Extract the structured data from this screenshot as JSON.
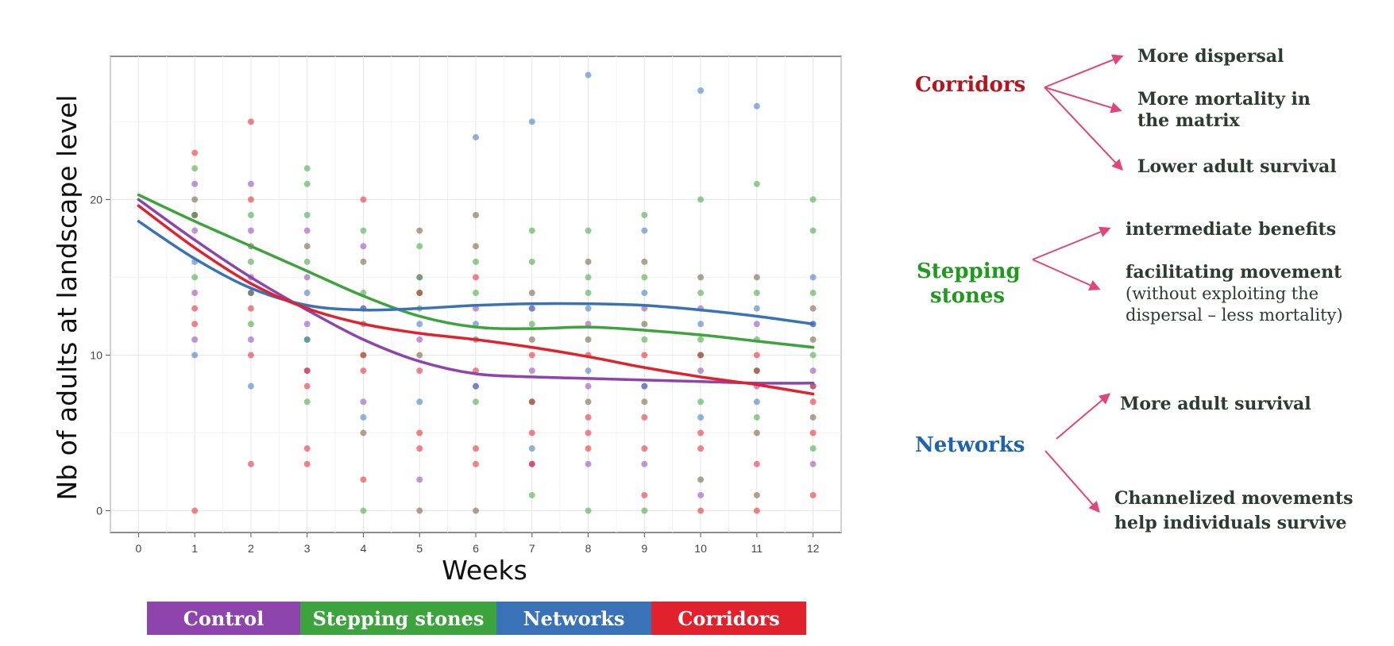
{
  "colors": {
    "control": "#8e44ad",
    "stepping": "#3da33d",
    "networks": "#3a72b8",
    "corridors": "#e1212b",
    "arrow": "#e0457b"
  },
  "chart_data": {
    "type": "scatter",
    "xlabel": "Weeks",
    "ylabel": "Nb of adults at landscape level",
    "xlim": [
      -0.5,
      12.5
    ],
    "ylim": [
      -1.4,
      29.2
    ],
    "x_ticks": [
      0,
      1,
      2,
      3,
      4,
      5,
      6,
      7,
      8,
      9,
      10,
      11,
      12
    ],
    "y_ticks": [
      0,
      10,
      20
    ],
    "grid": true,
    "series": [
      {
        "name": "Control",
        "color": "#8e44ad",
        "trend": [
          [
            0,
            20
          ],
          [
            1,
            17.4
          ],
          [
            2,
            15.0
          ],
          [
            3,
            12.9
          ],
          [
            4,
            11.0
          ],
          [
            5,
            9.6
          ],
          [
            6,
            8.8
          ],
          [
            7,
            8.6
          ],
          [
            8,
            8.5
          ],
          [
            9,
            8.4
          ],
          [
            10,
            8.3
          ],
          [
            11,
            8.2
          ],
          [
            12,
            8.2
          ]
        ],
        "points": [
          [
            1,
            21
          ],
          [
            1,
            18
          ],
          [
            1,
            14
          ],
          [
            1,
            11
          ],
          [
            2,
            21
          ],
          [
            2,
            18
          ],
          [
            2,
            15
          ],
          [
            2,
            11
          ],
          [
            3,
            18
          ],
          [
            3,
            15
          ],
          [
            3,
            12
          ],
          [
            3,
            9
          ],
          [
            4,
            17
          ],
          [
            4,
            13
          ],
          [
            4,
            7
          ],
          [
            5,
            15
          ],
          [
            5,
            11
          ],
          [
            5,
            2
          ],
          [
            6,
            13
          ],
          [
            6,
            8
          ],
          [
            7,
            13
          ],
          [
            7,
            9
          ],
          [
            7,
            3
          ],
          [
            8,
            12
          ],
          [
            8,
            8
          ],
          [
            8,
            3
          ],
          [
            9,
            13
          ],
          [
            9,
            8
          ],
          [
            9,
            3
          ],
          [
            10,
            13
          ],
          [
            10,
            9
          ],
          [
            10,
            1
          ],
          [
            11,
            12
          ],
          [
            11,
            8
          ],
          [
            12,
            12
          ],
          [
            12,
            9
          ],
          [
            12,
            3
          ]
        ]
      },
      {
        "name": "Stepping stones",
        "color": "#3da33d",
        "trend": [
          [
            0,
            20.3
          ],
          [
            1,
            18.6
          ],
          [
            2,
            17.0
          ],
          [
            3,
            15.4
          ],
          [
            4,
            13.8
          ],
          [
            5,
            12.5
          ],
          [
            6,
            11.8
          ],
          [
            7,
            11.7
          ],
          [
            8,
            11.8
          ],
          [
            9,
            11.6
          ],
          [
            10,
            11.3
          ],
          [
            11,
            10.9
          ],
          [
            12,
            10.5
          ]
        ],
        "points": [
          [
            1,
            22
          ],
          [
            1,
            19
          ],
          [
            1,
            15
          ],
          [
            2,
            19
          ],
          [
            2,
            16
          ],
          [
            2,
            12
          ],
          [
            3,
            22
          ],
          [
            3,
            21
          ],
          [
            3,
            19
          ],
          [
            3,
            16
          ],
          [
            3,
            11
          ],
          [
            3,
            7
          ],
          [
            4,
            18
          ],
          [
            4,
            14
          ],
          [
            4,
            10
          ],
          [
            4,
            0
          ],
          [
            5,
            17
          ],
          [
            5,
            15
          ],
          [
            5,
            13
          ],
          [
            6,
            16
          ],
          [
            6,
            14
          ],
          [
            6,
            7
          ],
          [
            7,
            18
          ],
          [
            7,
            16
          ],
          [
            7,
            12
          ],
          [
            7,
            1
          ],
          [
            8,
            18
          ],
          [
            8,
            15
          ],
          [
            8,
            14
          ],
          [
            8,
            0
          ],
          [
            9,
            19
          ],
          [
            9,
            15
          ],
          [
            9,
            11
          ],
          [
            9,
            0
          ],
          [
            10,
            20
          ],
          [
            10,
            14
          ],
          [
            10,
            11
          ],
          [
            10,
            7
          ],
          [
            11,
            21
          ],
          [
            11,
            14
          ],
          [
            11,
            11
          ],
          [
            11,
            6
          ],
          [
            12,
            20
          ],
          [
            12,
            18
          ],
          [
            12,
            14
          ],
          [
            12,
            10
          ],
          [
            12,
            4
          ]
        ]
      },
      {
        "name": "Networks",
        "color": "#3a72b8",
        "trend": [
          [
            0,
            18.6
          ],
          [
            1,
            16.2
          ],
          [
            2,
            14.3
          ],
          [
            3,
            13.2
          ],
          [
            4,
            12.9
          ],
          [
            5,
            13.0
          ],
          [
            6,
            13.2
          ],
          [
            7,
            13.3
          ],
          [
            8,
            13.3
          ],
          [
            9,
            13.2
          ],
          [
            10,
            12.9
          ],
          [
            11,
            12.5
          ],
          [
            12,
            12.0
          ]
        ],
        "points": [
          [
            1,
            16
          ],
          [
            1,
            10
          ],
          [
            2,
            14
          ],
          [
            2,
            8
          ],
          [
            3,
            14
          ],
          [
            3,
            11
          ],
          [
            4,
            13
          ],
          [
            4,
            6
          ],
          [
            5,
            12
          ],
          [
            5,
            7
          ],
          [
            6,
            24
          ],
          [
            6,
            12
          ],
          [
            6,
            8
          ],
          [
            7,
            25
          ],
          [
            7,
            13
          ],
          [
            7,
            4
          ],
          [
            8,
            28
          ],
          [
            8,
            13
          ],
          [
            8,
            9
          ],
          [
            9,
            18
          ],
          [
            9,
            14
          ],
          [
            9,
            8
          ],
          [
            10,
            27
          ],
          [
            10,
            12
          ],
          [
            10,
            6
          ],
          [
            11,
            26
          ],
          [
            11,
            13
          ],
          [
            11,
            7
          ],
          [
            12,
            15
          ],
          [
            12,
            12
          ],
          [
            12,
            8
          ]
        ]
      },
      {
        "name": "Corridors",
        "color": "#e1212b",
        "trend": [
          [
            0,
            19.6
          ],
          [
            1,
            16.9
          ],
          [
            2,
            14.6
          ],
          [
            3,
            13.0
          ],
          [
            4,
            12.0
          ],
          [
            5,
            11.4
          ],
          [
            6,
            11.0
          ],
          [
            7,
            10.5
          ],
          [
            8,
            9.9
          ],
          [
            9,
            9.2
          ],
          [
            10,
            8.6
          ],
          [
            11,
            8.1
          ],
          [
            12,
            7.5
          ]
        ],
        "points": [
          [
            1,
            23
          ],
          [
            1,
            13
          ],
          [
            1,
            12
          ],
          [
            1,
            0
          ],
          [
            2,
            25
          ],
          [
            2,
            20
          ],
          [
            2,
            13
          ],
          [
            2,
            10
          ],
          [
            2,
            3
          ],
          [
            3,
            9
          ],
          [
            3,
            8
          ],
          [
            3,
            4
          ],
          [
            3,
            3
          ],
          [
            4,
            20
          ],
          [
            4,
            10
          ],
          [
            4,
            9
          ],
          [
            4,
            2
          ],
          [
            5,
            14
          ],
          [
            5,
            9
          ],
          [
            5,
            5
          ],
          [
            5,
            4
          ],
          [
            6,
            15
          ],
          [
            6,
            9
          ],
          [
            6,
            4
          ],
          [
            6,
            3
          ],
          [
            7,
            10
          ],
          [
            7,
            7
          ],
          [
            7,
            5
          ],
          [
            7,
            3
          ],
          [
            8,
            10
          ],
          [
            8,
            6
          ],
          [
            8,
            5
          ],
          [
            8,
            4
          ],
          [
            9,
            10
          ],
          [
            9,
            6
          ],
          [
            9,
            4
          ],
          [
            9,
            1
          ],
          [
            10,
            10
          ],
          [
            10,
            5
          ],
          [
            10,
            4
          ],
          [
            10,
            0
          ],
          [
            11,
            10
          ],
          [
            11,
            9
          ],
          [
            11,
            3
          ],
          [
            11,
            0
          ],
          [
            12,
            8
          ],
          [
            12,
            7
          ],
          [
            12,
            5
          ],
          [
            12,
            1
          ]
        ]
      },
      {
        "name": "",
        "color": "#6b5a3a",
        "trend": [],
        "points": [
          [
            1,
            20
          ],
          [
            1,
            19
          ],
          [
            2,
            17
          ],
          [
            2,
            14
          ],
          [
            3,
            17
          ],
          [
            3,
            13
          ],
          [
            4,
            16
          ],
          [
            4,
            12
          ],
          [
            4,
            5
          ],
          [
            5,
            18
          ],
          [
            5,
            14
          ],
          [
            5,
            10
          ],
          [
            5,
            0
          ],
          [
            6,
            19
          ],
          [
            6,
            17
          ],
          [
            6,
            11
          ],
          [
            6,
            0
          ],
          [
            7,
            14
          ],
          [
            7,
            11
          ],
          [
            7,
            7
          ],
          [
            8,
            16
          ],
          [
            8,
            11
          ],
          [
            8,
            7
          ],
          [
            9,
            16
          ],
          [
            9,
            12
          ],
          [
            9,
            7
          ],
          [
            10,
            15
          ],
          [
            10,
            10
          ],
          [
            10,
            2
          ],
          [
            11,
            15
          ],
          [
            11,
            9
          ],
          [
            11,
            5
          ],
          [
            11,
            1
          ],
          [
            12,
            13
          ],
          [
            12,
            11
          ],
          [
            12,
            6
          ]
        ]
      }
    ]
  },
  "legend_bar": [
    {
      "label": "Control",
      "color": "#8e44ad"
    },
    {
      "label": "Stepping stones",
      "color": "#3da33d"
    },
    {
      "label": "Networks",
      "color": "#3a72b8"
    },
    {
      "label": "Corridors",
      "color": "#e1212b"
    }
  ],
  "annotations": {
    "corridors": {
      "label": "Corridors",
      "color": "#b5161e",
      "items": [
        "More dispersal",
        "More mortality in",
        "the matrix",
        "Lower adult survival"
      ]
    },
    "stepping": {
      "label_line1": "Stepping",
      "label_line2": "stones",
      "color": "#1f9a1f",
      "items": [
        "intermediate benefits",
        "facilitating movement"
      ],
      "note_line1": "(without exploiting the",
      "note_line2": "dispersal – less mortality)"
    },
    "networks": {
      "label": "Networks",
      "color": "#1f63b0",
      "items": [
        "More adult survival",
        "Channelized movements",
        "help individuals survive"
      ]
    }
  }
}
